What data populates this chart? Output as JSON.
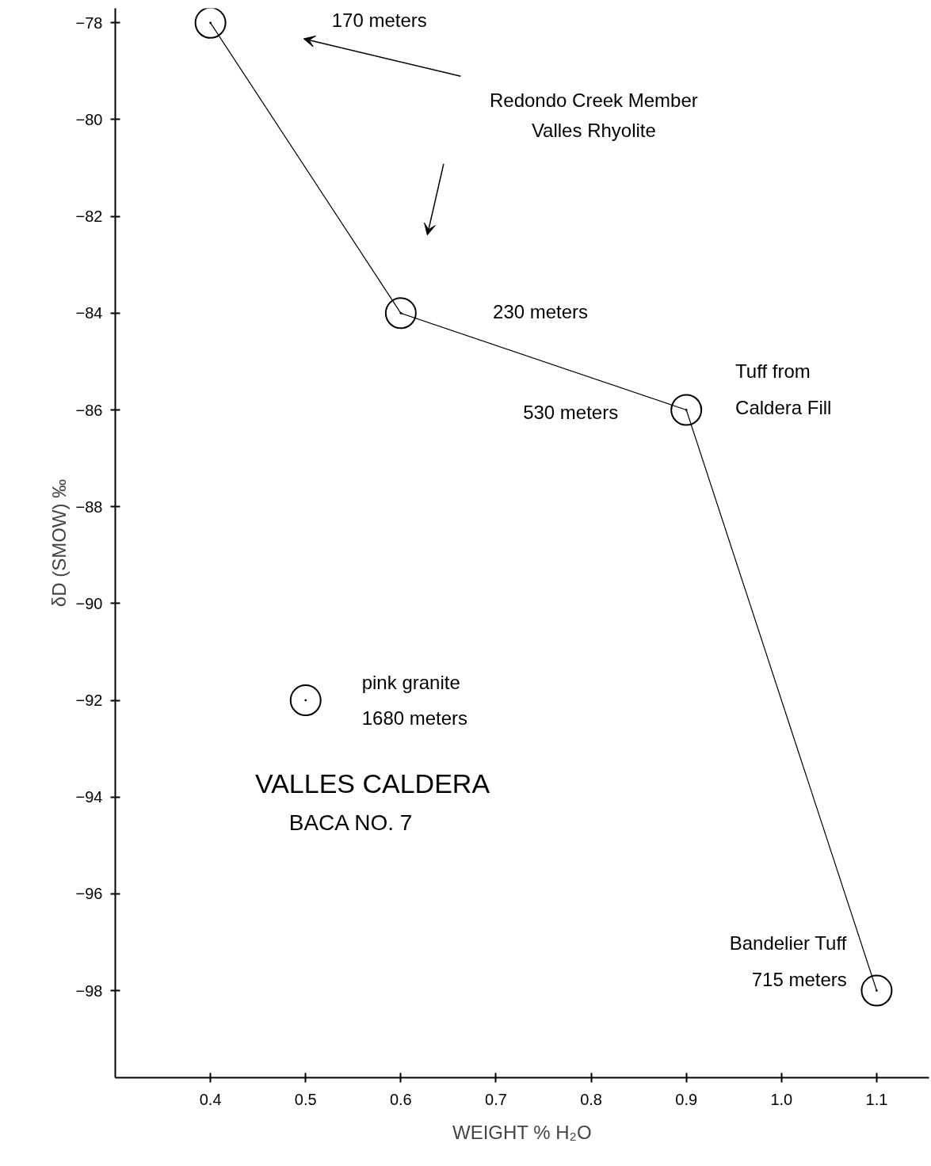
{
  "chart_data": {
    "type": "line",
    "xlabel": "WEIGHT % H₂O",
    "ylabel": "δD (SMOW) ‰",
    "title": "VALLES CALDERA",
    "subtitle": "BACA NO. 7",
    "xlim": [
      0.3,
      1.155
    ],
    "ylim": [
      -99.8,
      -77.7
    ],
    "xticks": [
      0.4,
      0.5,
      0.6,
      0.7,
      0.8,
      0.9,
      {
        "value": 1.0,
        "label": "1.0"
      },
      1.1
    ],
    "yticks": [
      -78,
      -80,
      -82,
      -84,
      -86,
      -88,
      -90,
      -92,
      -94,
      -96,
      -98
    ],
    "series": [
      {
        "color": "#000000",
        "x": [
          0.4,
          0.6,
          0.9,
          1.1
        ],
        "values": [
          -78,
          -84,
          -86,
          -98
        ]
      },
      {
        "type": "scatter",
        "color": "#000000",
        "x": [
          0.5
        ],
        "values": [
          -92
        ]
      }
    ],
    "marker": "circle",
    "line_style": "solid",
    "grid": false,
    "annotations": [
      "170 meters",
      "Redondo Creek Member\nValles Rhyolite",
      "230 meters",
      "530 meters",
      "Tuff from\nCaldera Fill",
      "Bandelier Tuff\n715 meters",
      "pink granite\n1680 meters"
    ]
  }
}
